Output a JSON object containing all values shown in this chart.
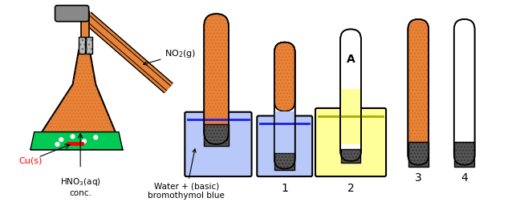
{
  "bg_color": "#ffffff",
  "orange_fill": "#e8833a",
  "orange_hatch_color": "#c86010",
  "green_fill": "#00cc55",
  "blue_fill": "#b8c8f8",
  "blue_line": "#2020dd",
  "yellow_fill": "#ffff99",
  "gray_fill": "#999999",
  "dark_gray": "#555555",
  "cu_color": "#ff0000",
  "cu_text_color": "#ff0000",
  "no2_label": "NO$_2$(g)",
  "cu_label": "Cu(s)",
  "hno3_label": "HNO$_3$(aq)\nconc.",
  "water_label": "Water + (basic)\nbromothymol blue"
}
